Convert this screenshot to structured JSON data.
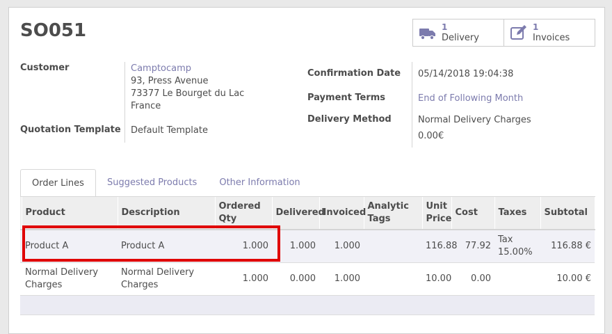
{
  "record": {
    "title": "SO051"
  },
  "smart_buttons": [
    {
      "count": "1",
      "label": "Delivery",
      "icon": "truck-icon"
    },
    {
      "count": "1",
      "label": "Invoices",
      "icon": "pencil-square-icon"
    }
  ],
  "fields": {
    "customer_label": "Customer",
    "customer_name": "Camptocamp",
    "customer_address": [
      "93, Press Avenue",
      "73377 Le Bourget du Lac",
      "France"
    ],
    "quotation_template_label": "Quotation Template",
    "quotation_template_value": "Default Template",
    "confirmation_date_label": "Confirmation Date",
    "confirmation_date_value": "05/14/2018 19:04:38",
    "payment_terms_label": "Payment Terms",
    "payment_terms_value": "End of Following Month",
    "delivery_method_label": "Delivery Method",
    "delivery_method_value": "Normal Delivery Charges",
    "delivery_method_price": "0.00€"
  },
  "tabs": [
    {
      "label": "Order Lines",
      "active": true
    },
    {
      "label": "Suggested Products",
      "active": false
    },
    {
      "label": "Other Information",
      "active": false
    }
  ],
  "order_lines": {
    "headers": [
      "Product",
      "Description",
      "Ordered Qty",
      "Delivered",
      "Invoiced",
      "Analytic Tags",
      "Unit Price",
      "Cost",
      "Taxes",
      "Subtotal"
    ],
    "rows": [
      {
        "product": "Product A",
        "description": "Product A",
        "ordered": "1.000",
        "delivered": "1.000",
        "invoiced": "1.000",
        "tags": "",
        "unit_price": "116.88",
        "cost": "77.92",
        "taxes": "Tax 15.00%",
        "subtotal": "116.88 €"
      },
      {
        "product": "Normal Delivery Charges",
        "description": "Normal Delivery Charges",
        "ordered": "1.000",
        "delivered": "0.000",
        "invoiced": "1.000",
        "tags": "",
        "unit_price": "10.00",
        "cost": "0.00",
        "taxes": "",
        "subtotal": "10.00 €"
      }
    ]
  },
  "colors": {
    "link": "#7c7bad",
    "highlight": "#e00000"
  }
}
